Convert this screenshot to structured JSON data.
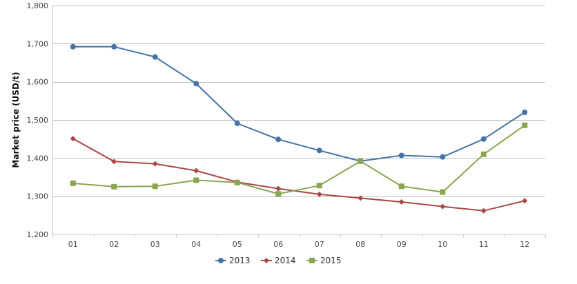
{
  "chart_data": {
    "type": "line",
    "categories": [
      "01",
      "02",
      "03",
      "04",
      "05",
      "06",
      "07",
      "08",
      "09",
      "10",
      "11",
      "12"
    ],
    "ylabel": "Market price (USD/t)",
    "xlabel": "",
    "ylim": [
      1200,
      1800
    ],
    "yticks": [
      1200,
      1300,
      1400,
      1500,
      1600,
      1700,
      1800
    ],
    "ytick_labels": [
      "1,200",
      "1,300",
      "1,400",
      "1,500",
      "1,600",
      "1,700",
      "1,800"
    ],
    "grid": "horizontal",
    "legend_position": "bottom",
    "series": [
      {
        "name": "2013",
        "color": "#4572A7",
        "marker": "circle",
        "values": [
          1692,
          1692,
          1665,
          1595,
          1491,
          1449,
          1420,
          1392,
          1407,
          1403,
          1450,
          1520
        ]
      },
      {
        "name": "2014",
        "color": "#AA4643",
        "marker": "diamond",
        "values": [
          1451,
          1391,
          1385,
          1367,
          1337,
          1320,
          1305,
          1295,
          1285,
          1273,
          1262,
          1288
        ]
      },
      {
        "name": "2015",
        "color": "#89A54E",
        "marker": "square",
        "values": [
          1334,
          1325,
          1326,
          1342,
          1336,
          1306,
          1328,
          1392,
          1326,
          1311,
          1410,
          1486
        ]
      }
    ]
  }
}
